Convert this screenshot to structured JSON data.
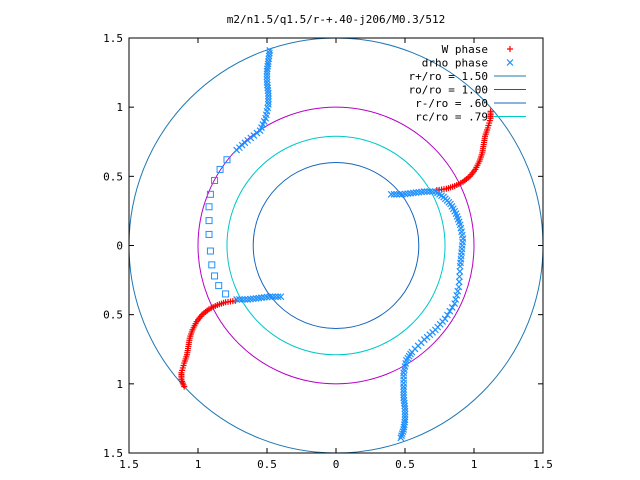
{
  "chart_data": {
    "type": "scatter",
    "title": "m2/n1.5/q1.5/r-+.40-j206/M0.3/512",
    "xlim": [
      -1.5,
      1.5
    ],
    "ylim": [
      -1.5,
      1.5
    ],
    "x_ticks": [
      {
        "value": -1.5,
        "label": "1.5"
      },
      {
        "value": -1.0,
        "label": "1"
      },
      {
        "value": -0.5,
        "label": "0.5"
      },
      {
        "value": 0.0,
        "label": "0"
      },
      {
        "value": 0.5,
        "label": "0.5"
      },
      {
        "value": 1.0,
        "label": "1"
      },
      {
        "value": 1.5,
        "label": "1.5"
      }
    ],
    "y_ticks": [
      {
        "value": 1.5,
        "label": "1.5"
      },
      {
        "value": 1.0,
        "label": "1"
      },
      {
        "value": 0.5,
        "label": "0.5"
      },
      {
        "value": 0.0,
        "label": "0"
      },
      {
        "value": -0.5,
        "label": "0.5"
      },
      {
        "value": -1.0,
        "label": "1"
      },
      {
        "value": -1.5,
        "label": "1.5"
      }
    ],
    "legend_position": "top-right",
    "circles": [
      {
        "name": "r+/ro = 1.50",
        "radius": 1.5,
        "color": "#1f77b4"
      },
      {
        "name": "ro/ro = 1.00",
        "radius": 1.0,
        "color": "#b700c8"
      },
      {
        "name": "r-/ro = .60",
        "radius": 0.6,
        "color": "#1565c0"
      },
      {
        "name": "rc/ro = .79",
        "radius": 0.79,
        "color": "#00c8c8"
      }
    ],
    "series": [
      {
        "name": "W phase",
        "marker": "plus",
        "color": "#ff0000",
        "points": [
          [
            0.73,
            0.4
          ],
          [
            0.8,
            0.41
          ],
          [
            0.86,
            0.43
          ],
          [
            0.92,
            0.46
          ],
          [
            0.97,
            0.5
          ],
          [
            1.01,
            0.55
          ],
          [
            1.04,
            0.61
          ],
          [
            1.06,
            0.67
          ],
          [
            1.07,
            0.73
          ],
          [
            1.08,
            0.79
          ],
          [
            1.1,
            0.85
          ],
          [
            1.12,
            0.92
          ],
          [
            1.12,
            0.97
          ],
          [
            -0.73,
            -0.4
          ],
          [
            -0.8,
            -0.41
          ],
          [
            -0.86,
            -0.43
          ],
          [
            -0.92,
            -0.46
          ],
          [
            -0.97,
            -0.5
          ],
          [
            -1.01,
            -0.55
          ],
          [
            -1.04,
            -0.61
          ],
          [
            -1.06,
            -0.67
          ],
          [
            -1.07,
            -0.73
          ],
          [
            -1.08,
            -0.79
          ],
          [
            -1.1,
            -0.85
          ],
          [
            -1.12,
            -0.92
          ],
          [
            -1.12,
            -0.97
          ],
          [
            -1.1,
            -1.02
          ]
        ]
      },
      {
        "name": "drho phase",
        "marker": "cross",
        "color": "#1e90ff",
        "points": [
          [
            0.4,
            0.37
          ],
          [
            0.48,
            0.37
          ],
          [
            0.56,
            0.38
          ],
          [
            0.64,
            0.39
          ],
          [
            0.72,
            0.39
          ],
          [
            0.78,
            0.35
          ],
          [
            0.83,
            0.3
          ],
          [
            0.87,
            0.23
          ],
          [
            0.9,
            0.15
          ],
          [
            0.92,
            0.05
          ],
          [
            0.91,
            -0.05
          ],
          [
            0.9,
            -0.15
          ],
          [
            0.89,
            -0.3
          ],
          [
            0.86,
            -0.42
          ],
          [
            0.79,
            -0.53
          ],
          [
            0.72,
            -0.61
          ],
          [
            0.64,
            -0.68
          ],
          [
            0.55,
            -0.77
          ],
          [
            0.51,
            -0.83
          ],
          [
            0.49,
            -0.92
          ],
          [
            0.49,
            -1.02
          ],
          [
            0.49,
            -1.1
          ],
          [
            0.5,
            -1.18
          ],
          [
            0.5,
            -1.26
          ],
          [
            0.49,
            -1.33
          ],
          [
            0.47,
            -1.39
          ],
          [
            -0.48,
            1.41
          ],
          [
            -0.49,
            1.33
          ],
          [
            -0.5,
            1.26
          ],
          [
            -0.5,
            1.18
          ],
          [
            -0.49,
            1.1
          ],
          [
            -0.49,
            1.02
          ],
          [
            -0.51,
            0.92
          ],
          [
            -0.55,
            0.83
          ],
          [
            -0.64,
            0.76
          ],
          [
            -0.72,
            0.69
          ],
          [
            -0.4,
            -0.37
          ],
          [
            -0.48,
            -0.37
          ],
          [
            -0.56,
            -0.38
          ],
          [
            -0.64,
            -0.39
          ],
          [
            -0.72,
            -0.39
          ]
        ]
      },
      {
        "name": "",
        "marker": "square",
        "color": "#1e90ff",
        "points": [
          [
            -0.79,
            0.62
          ],
          [
            -0.84,
            0.55
          ],
          [
            -0.88,
            0.47
          ],
          [
            -0.91,
            0.37
          ],
          [
            -0.92,
            0.28
          ],
          [
            -0.92,
            0.18
          ],
          [
            -0.92,
            0.08
          ],
          [
            -0.91,
            -0.04
          ],
          [
            -0.9,
            -0.14
          ],
          [
            -0.88,
            -0.22
          ],
          [
            -0.85,
            -0.29
          ],
          [
            -0.8,
            -0.35
          ]
        ]
      }
    ]
  }
}
